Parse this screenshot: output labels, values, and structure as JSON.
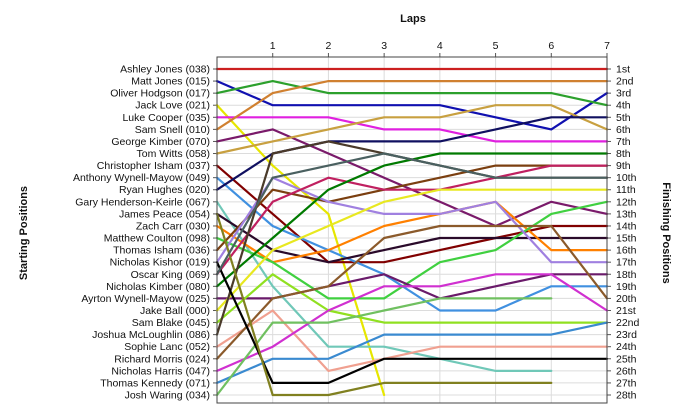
{
  "chart_data": {
    "type": "line",
    "title": "",
    "x_axis_title": "Laps",
    "left_axis_title": "Starting Positions",
    "right_axis_title": "Finishing Positions",
    "laps": [
      1,
      2,
      3,
      4,
      5,
      6,
      7
    ],
    "starting_labels": [
      "Ashley Jones (038)",
      "Matt Jones (015)",
      "Oliver Hodgson (017)",
      "Jack Love (021)",
      "Luke Cooper (035)",
      "Sam Snell (010)",
      "George Kimber (070)",
      "Tom Witts (058)",
      "Christopher Isham (037)",
      "Anthony Wynell-Mayow (049)",
      "Ryan Hughes (020)",
      "Gary Henderson-Keirle (067)",
      "James Peace (054)",
      "Zach Carr (030)",
      "Matthew Coulton (098)",
      "Thomas Isham (036)",
      "Nicholas Kishor (019)",
      "Oscar King (069)",
      "Nicholas Kimber (080)",
      "Ayrton Wynell-Mayow (025)",
      "Jake Ball (000)",
      "Sam Blake (045)",
      "Joshua McLoughlin (086)",
      "Sophie Lanc (052)",
      "Richard Morris (024)",
      "Nicholas Harris (047)",
      "Thomas Kennedy (071)",
      "Josh Waring (034)"
    ],
    "finishing_labels": [
      "1st",
      "2nd",
      "3rd",
      "4th",
      "5th",
      "6th",
      "7th",
      "8th",
      "9th",
      "10th",
      "11th",
      "12th",
      "13th",
      "14th",
      "15th",
      "16th",
      "17th",
      "18th",
      "19th",
      "20th",
      "21st",
      "22nd",
      "23rd",
      "24th",
      "25th",
      "26th",
      "27th",
      "28th"
    ],
    "y_range": [
      1,
      28
    ],
    "x_range": [
      0,
      7
    ],
    "grid": true,
    "series": [
      {
        "name": "Ashley Jones (038)",
        "color": "#cc1f1f",
        "positions": [
          1,
          1,
          1,
          1,
          1,
          1,
          1,
          1
        ]
      },
      {
        "name": "Matt Jones (015)",
        "color": "#1010b0",
        "positions": [
          2,
          4,
          4,
          4,
          4,
          5,
          6,
          3
        ]
      },
      {
        "name": "Oliver Hodgson (017)",
        "color": "#2ca02c",
        "positions": [
          3,
          2,
          3,
          3,
          3,
          3,
          3,
          4
        ]
      },
      {
        "name": "Jack Love (021)",
        "color": "#e6e600",
        "positions": [
          4,
          9,
          13,
          28
        ]
      },
      {
        "name": "Luke Cooper (035)",
        "color": "#e020e0",
        "positions": [
          5,
          5,
          5,
          6,
          6,
          7,
          7,
          7
        ]
      },
      {
        "name": "Sam Snell (010)",
        "color": "#d08030",
        "positions": [
          6,
          3,
          2,
          2,
          2,
          2,
          2,
          2
        ]
      },
      {
        "name": "George Kimber (070)",
        "color": "#7a1a6a",
        "positions": [
          7,
          6,
          8,
          10,
          12,
          14,
          12,
          13
        ]
      },
      {
        "name": "Tom Witts (058)",
        "color": "#c8a040",
        "positions": [
          8,
          7,
          6,
          5,
          5,
          4,
          4,
          6
        ]
      },
      {
        "name": "Christopher Isham (037)",
        "color": "#800000",
        "positions": [
          9,
          13,
          17,
          17,
          16,
          15,
          14,
          14
        ]
      },
      {
        "name": "Anthony Wynell-Mayow (049)",
        "color": "#4090e0",
        "positions": [
          10,
          14,
          16,
          18,
          21,
          21,
          19,
          19
        ]
      },
      {
        "name": "Ryan Hughes (020)",
        "color": "#101060",
        "positions": [
          11,
          8,
          7,
          7,
          7,
          6,
          5,
          5
        ]
      },
      {
        "name": "Gary Henderson-Keirle (067)",
        "color": "#70c8b8",
        "positions": [
          12,
          19,
          24,
          24,
          25,
          26,
          26
        ]
      },
      {
        "name": "James Peace (054)",
        "color": "#2a0a2a",
        "positions": [
          13,
          16,
          17,
          16,
          15,
          15,
          15,
          15
        ]
      },
      {
        "name": "Zach Carr (030)",
        "color": "#ff8000",
        "positions": [
          14,
          17,
          16,
          14,
          13,
          12,
          16,
          16
        ]
      },
      {
        "name": "Matthew Coulton (098)",
        "color": "#40d040",
        "positions": [
          15,
          17,
          20,
          20,
          17,
          16,
          13,
          12
        ]
      },
      {
        "name": "Thomas Isham (036)",
        "color": "#7b3f10",
        "positions": [
          16,
          11,
          12,
          11,
          10,
          9,
          9,
          9
        ]
      },
      {
        "name": "Nicholas Kishor (019)",
        "color": "#a080e0",
        "positions": [
          17,
          10,
          12,
          13,
          13,
          12,
          17,
          17
        ]
      },
      {
        "name": "Oscar King (069)",
        "color": "#c02060",
        "positions": [
          18,
          12,
          10,
          11,
          11,
          10,
          9,
          9
        ]
      },
      {
        "name": "Nicholas Kimber (080)",
        "color": "#007a00",
        "positions": [
          19,
          15,
          11,
          9,
          8,
          8,
          8,
          8
        ]
      },
      {
        "name": "Ayrton Wynell-Mayow (025)",
        "color": "#6a1a6a",
        "positions": [
          20,
          20,
          19,
          18,
          20,
          19,
          18,
          18
        ]
      },
      {
        "name": "Jake Ball (000)",
        "color": "#e8e820",
        "positions": [
          21,
          16,
          14,
          12,
          11,
          11,
          11,
          11
        ]
      },
      {
        "name": "Sam Blake (045)",
        "color": "#90e020",
        "positions": [
          22,
          18,
          21,
          22,
          22,
          22,
          22,
          22
        ]
      },
      {
        "name": "Joshua McLoughlin (086)",
        "color": "#4a3a2a",
        "positions": [
          23,
          8,
          7,
          8,
          9,
          10,
          10,
          10
        ]
      },
      {
        "name": "Sophie Lanc (052)",
        "color": "#f0a090",
        "positions": [
          24,
          21,
          26,
          25,
          24,
          24,
          24,
          24
        ]
      },
      {
        "name": "Richard Morris (024)",
        "color": "#8b5a2b",
        "positions": [
          25,
          20,
          19,
          15,
          14,
          14,
          14,
          20
        ]
      },
      {
        "name": "Nicholas Harris (047)",
        "color": "#d030d0",
        "positions": [
          26,
          24,
          21,
          19,
          19,
          18,
          18,
          21
        ]
      },
      {
        "name": "Thomas Kennedy (071)",
        "color": "#3a8ad0",
        "positions": [
          27,
          25,
          25,
          23,
          23,
          23,
          23,
          22
        ]
      },
      {
        "name": "Josh Waring (034)",
        "color": "#70c060",
        "positions": [
          28,
          22,
          22,
          21,
          20,
          20,
          20
        ]
      },
      {
        "name": "",
        "color": "#000000",
        "positions": [
          17,
          27,
          27,
          25,
          25,
          25,
          25,
          25
        ]
      },
      {
        "name": "",
        "color": "#808020",
        "positions": [
          13,
          28,
          28,
          27,
          27,
          27,
          27
        ]
      },
      {
        "name": "",
        "color": "#4a6060",
        "positions": [
          18,
          10,
          9,
          8,
          9,
          10,
          10,
          10
        ]
      }
    ]
  }
}
